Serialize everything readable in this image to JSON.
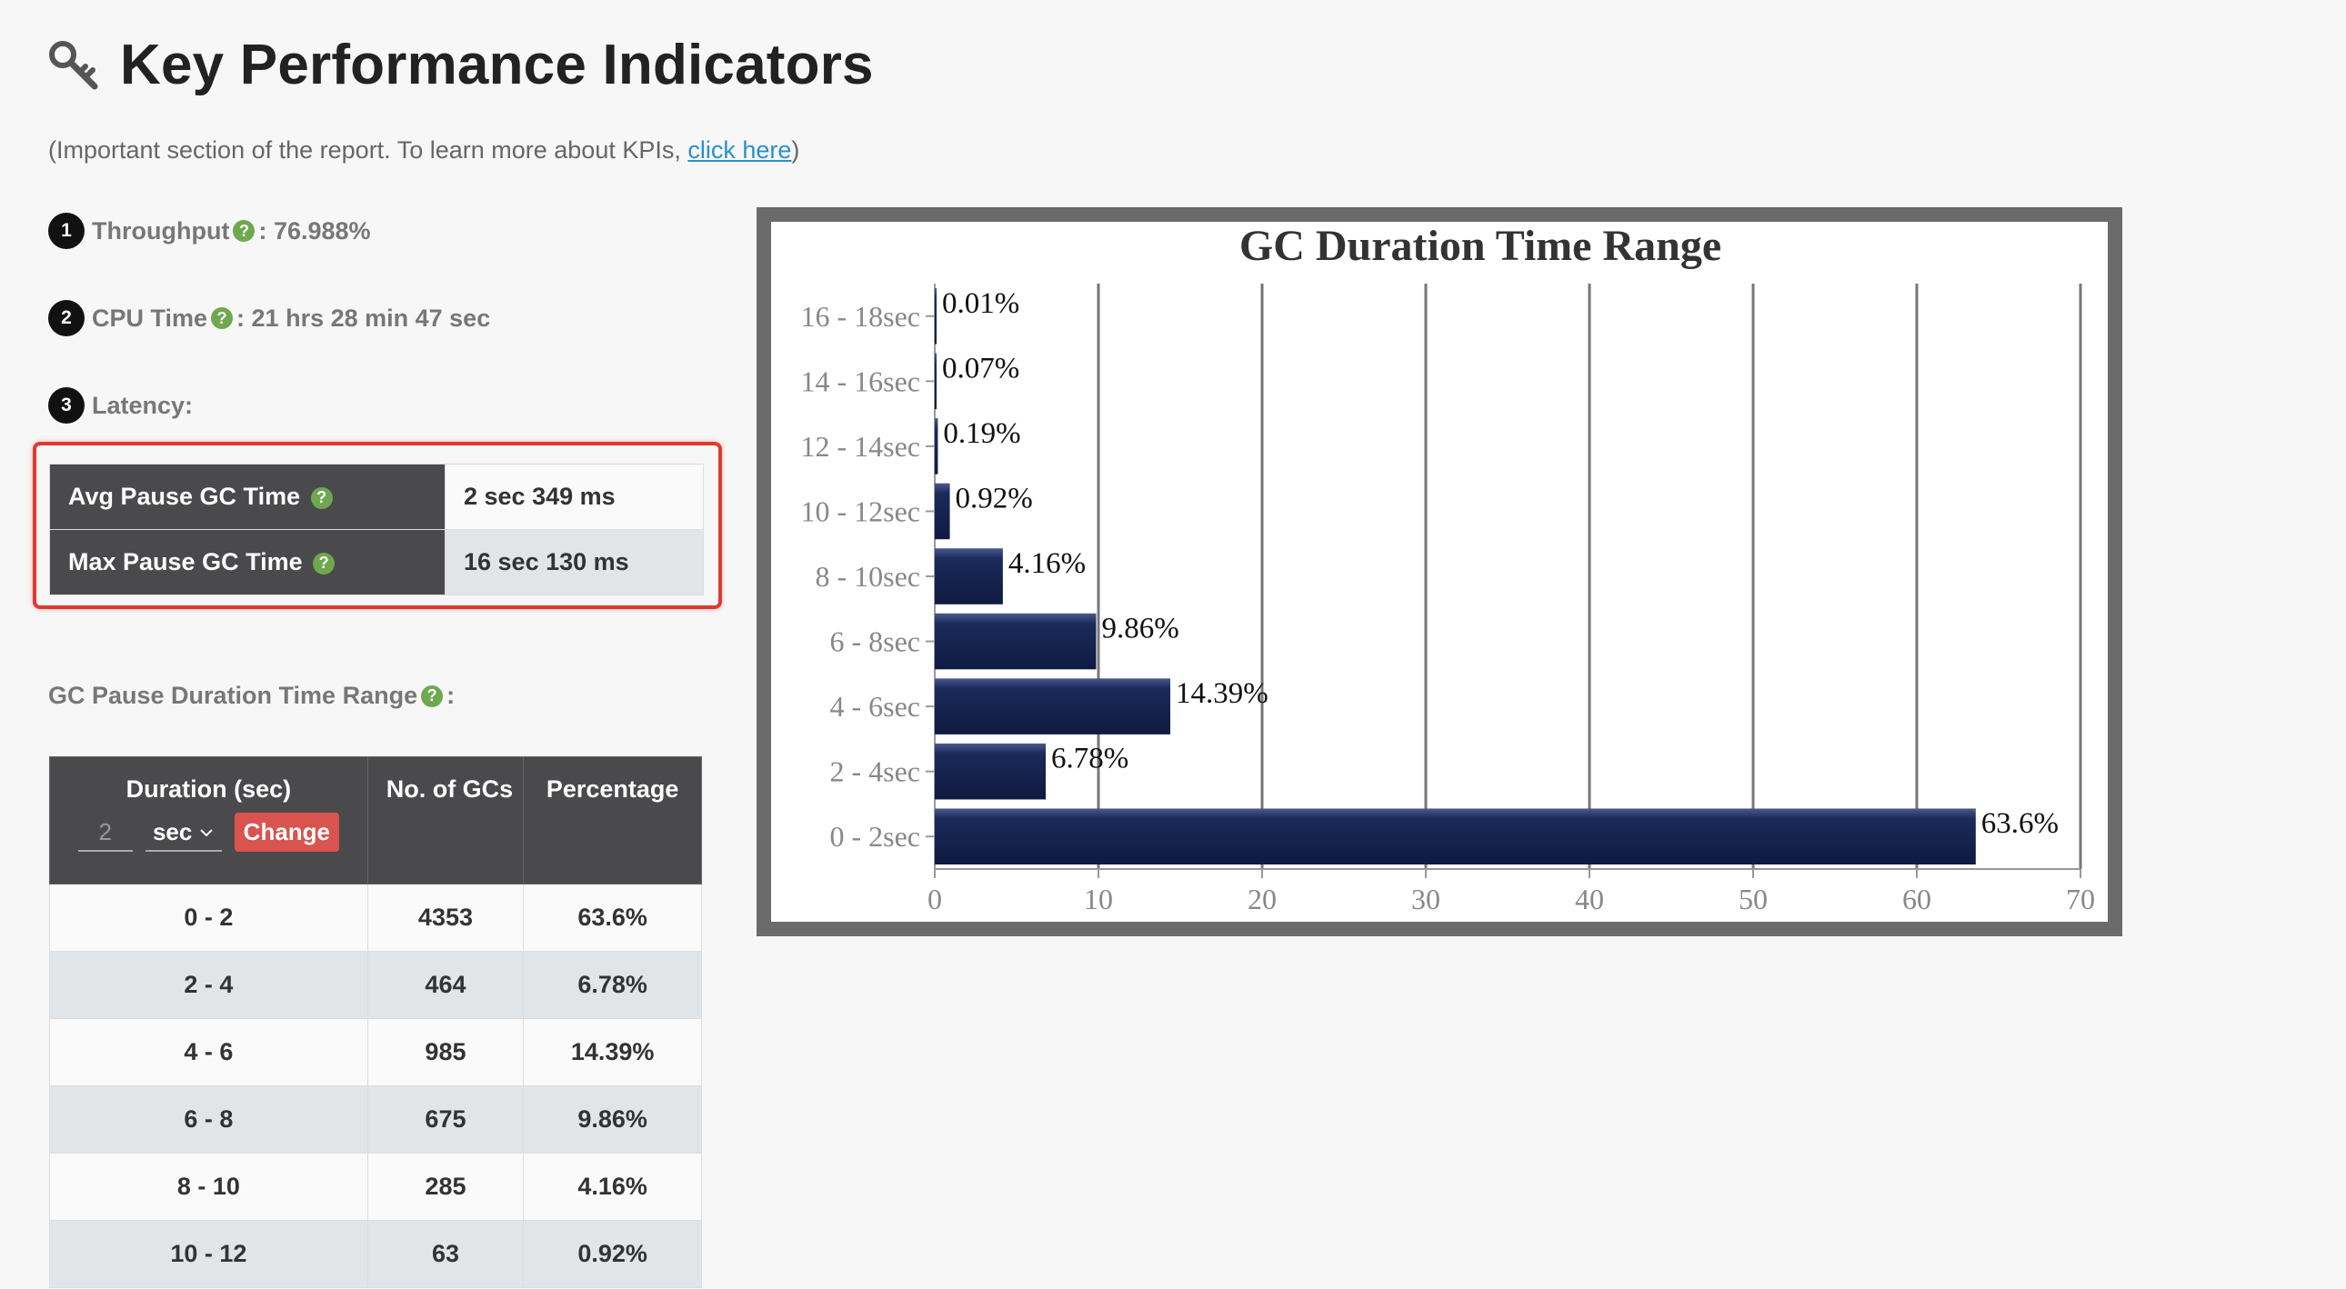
{
  "header": {
    "title": "Key Performance Indicators",
    "subtitle_prefix": "(Important section of the report. To learn more about KPIs, ",
    "subtitle_link": "click here",
    "subtitle_suffix": ")"
  },
  "kpis": {
    "throughput": {
      "num": "1",
      "label": "Throughput",
      "value": ": 76.988%"
    },
    "cpu_time": {
      "num": "2",
      "label": "CPU Time",
      "value": ": 21 hrs 28 min 47 sec"
    },
    "latency": {
      "num": "3",
      "label": "Latency:"
    }
  },
  "help_glyph": "?",
  "latency_table": [
    {
      "label": "Avg Pause GC Time",
      "value": "2 sec 349 ms"
    },
    {
      "label": "Max Pause GC Time",
      "value": "16 sec 130 ms"
    }
  ],
  "range_heading": {
    "label": "GC Pause Duration Time Range",
    "suffix": ":"
  },
  "range_table": {
    "headers": {
      "duration": "Duration (sec)",
      "count": "No. of GCs",
      "percentage": "Percentage"
    },
    "duration_input_value": "2",
    "unit": "sec",
    "change_label": "Change",
    "rows": [
      {
        "range": "0 - 2",
        "count": "4353",
        "pct": "63.6%"
      },
      {
        "range": "2 - 4",
        "count": "464",
        "pct": "6.78%"
      },
      {
        "range": "4 - 6",
        "count": "985",
        "pct": "14.39%"
      },
      {
        "range": "6 - 8",
        "count": "675",
        "pct": "9.86%"
      },
      {
        "range": "8 - 10",
        "count": "285",
        "pct": "4.16%"
      },
      {
        "range": "10 - 12",
        "count": "63",
        "pct": "0.92%"
      }
    ]
  },
  "colors": {
    "bar": "#1a2a5a",
    "accent_red": "#d9534f",
    "help_green": "#6fa84e",
    "link": "#2c8fc9"
  },
  "chart_data": {
    "type": "bar",
    "orientation": "horizontal",
    "title": "GC Duration Time Range",
    "categories": [
      "16 - 18sec",
      "14 - 16sec",
      "12 - 14sec",
      "10 - 12sec",
      "8 - 10sec",
      "6 - 8sec",
      "4 - 6sec",
      "2 - 4sec",
      "0 - 2sec"
    ],
    "values": [
      0.01,
      0.07,
      0.19,
      0.92,
      4.16,
      9.86,
      14.39,
      6.78,
      63.6
    ],
    "data_labels": [
      "0.01%",
      "0.07%",
      "0.19%",
      "0.92%",
      "4.16%",
      "9.86%",
      "14.39%",
      "6.78%",
      "63.6%"
    ],
    "xlim": [
      0,
      70
    ],
    "xticks": [
      0,
      10,
      20,
      30,
      40,
      50,
      60,
      70
    ],
    "grid": true
  }
}
